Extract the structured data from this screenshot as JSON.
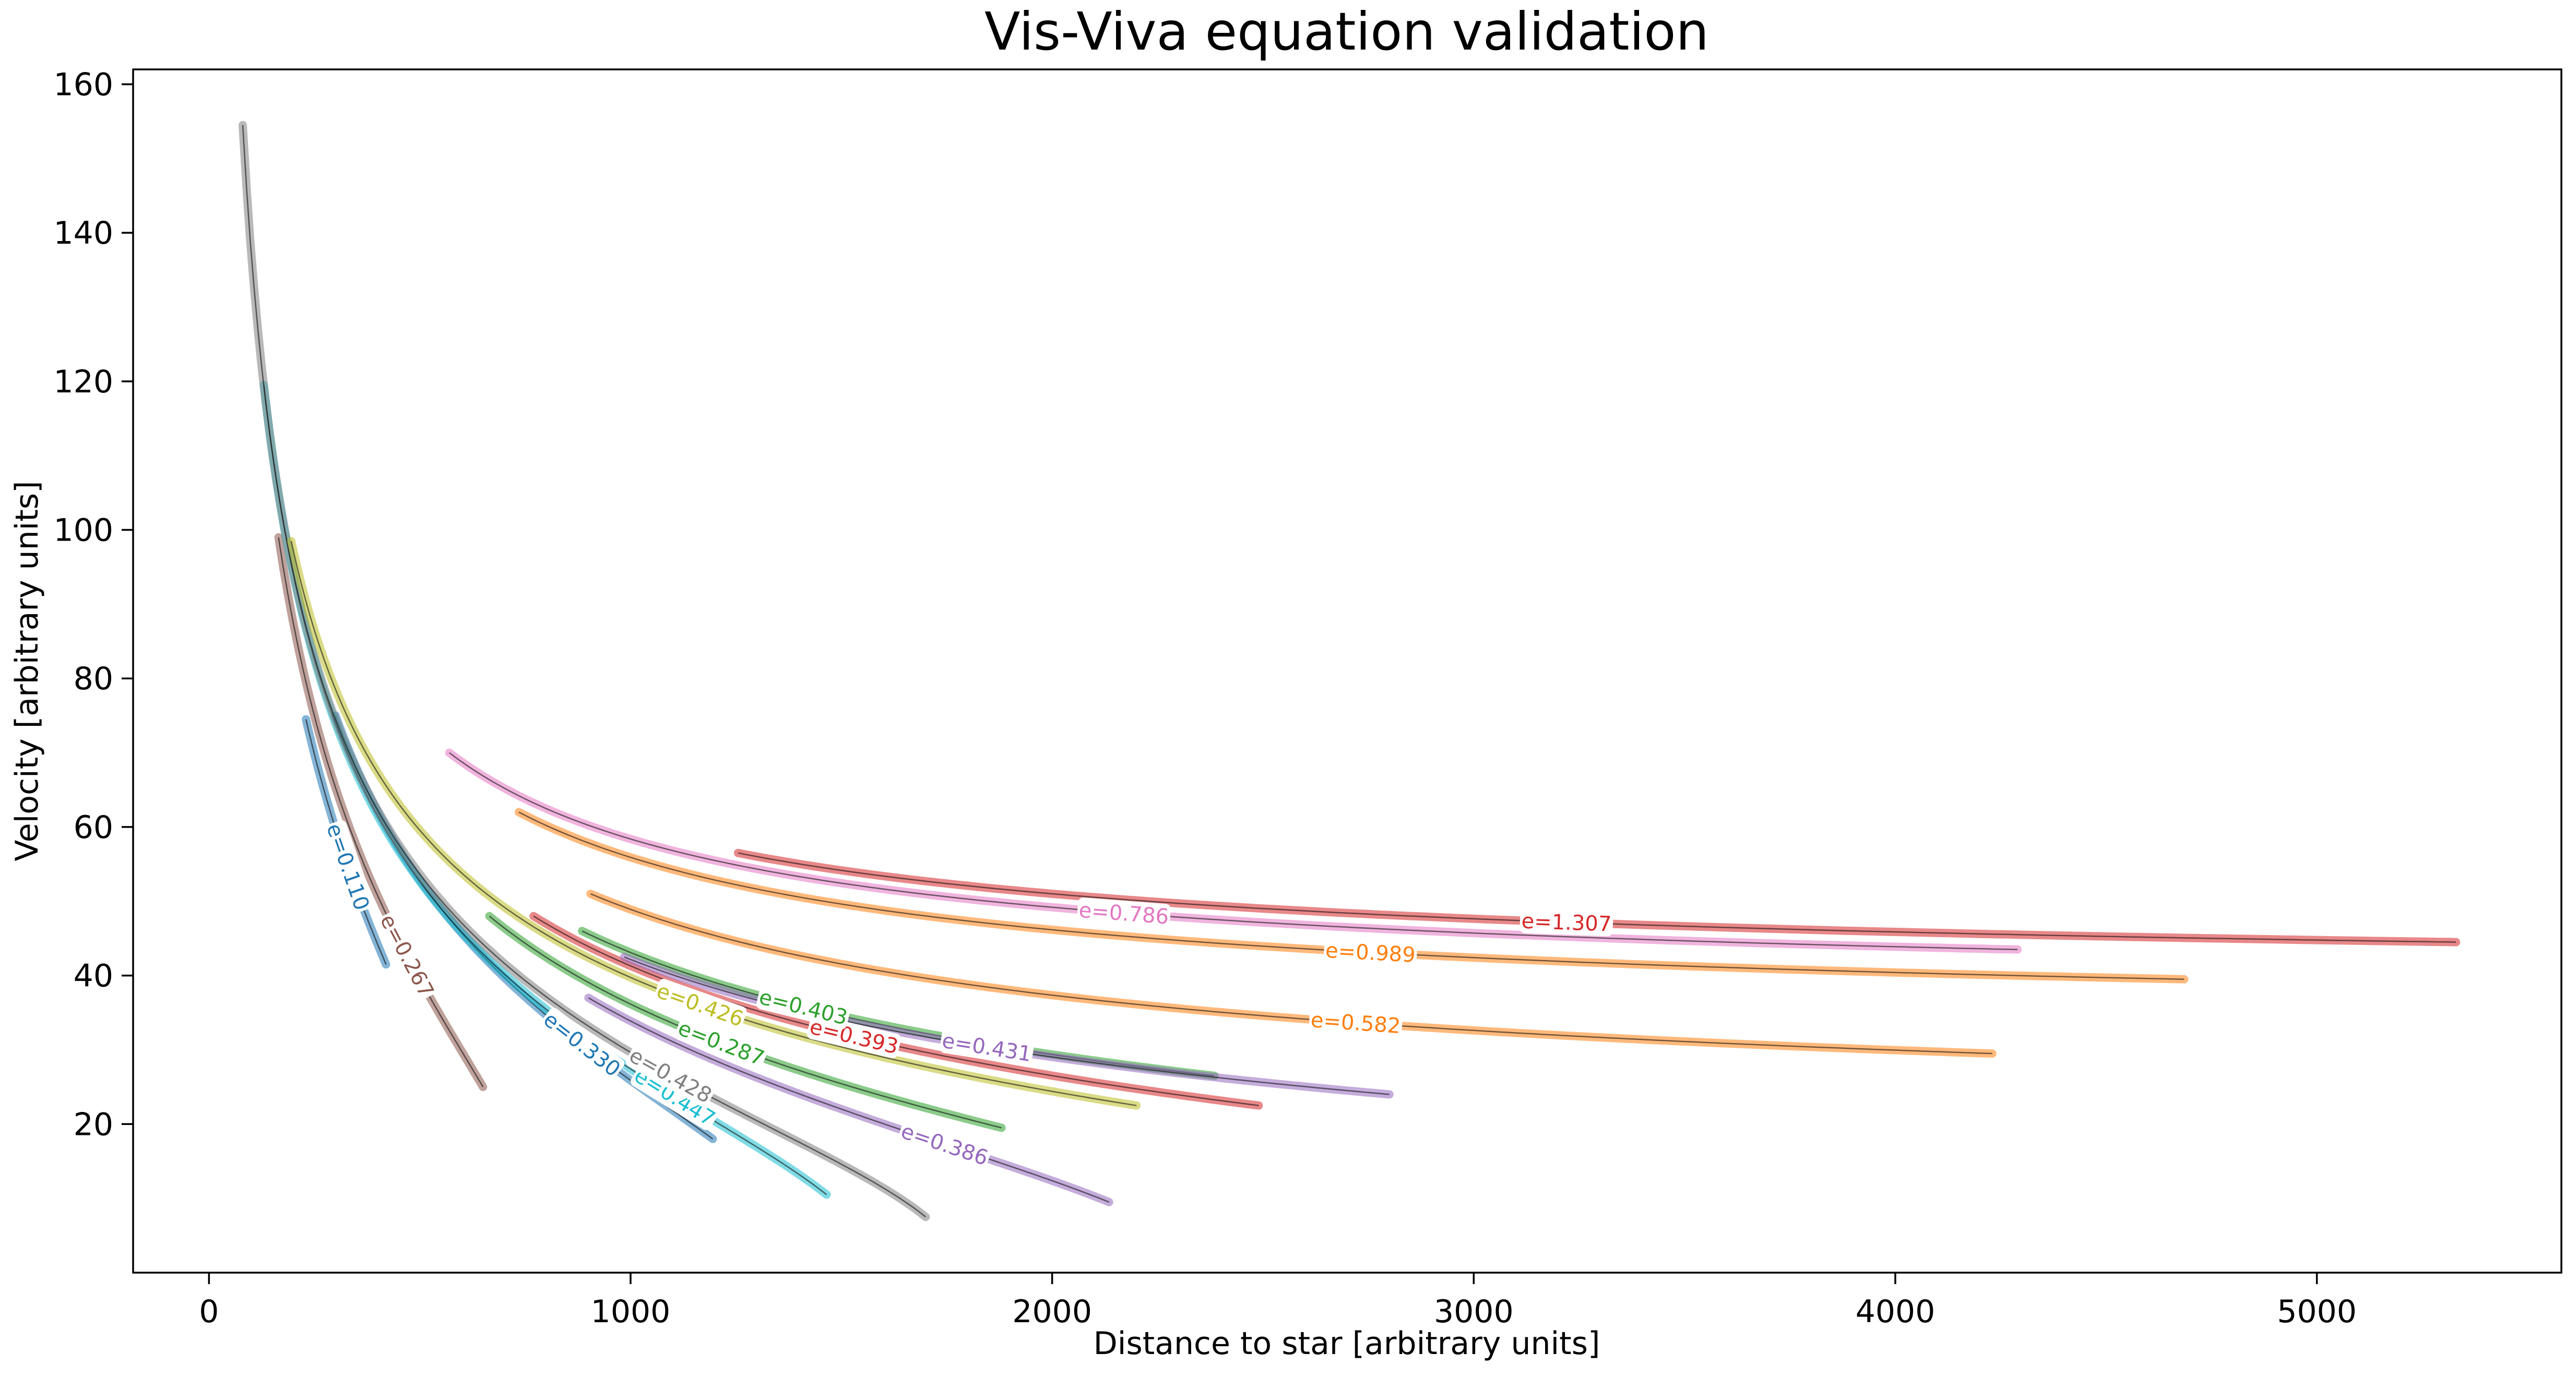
{
  "chart_data": {
    "type": "line",
    "title": "Vis-Viva equation validation",
    "xlabel": "Distance to star [arbitrary units]",
    "ylabel": "Velocity [arbitrary units]",
    "xlim": [
      -180,
      5580
    ],
    "ylim": [
      0,
      162
    ],
    "xticks": [
      0,
      1000,
      2000,
      3000,
      4000,
      5000
    ],
    "yticks": [
      20,
      40,
      60,
      80,
      100,
      120,
      140,
      160
    ],
    "grid": false,
    "legend": "none",
    "series": [
      {
        "label": "e=0.110",
        "color": "#1f77b4",
        "r_min": 230,
        "v_max": 74.5,
        "r_max": 420,
        "v_min": 41.5,
        "label_r": 330
      },
      {
        "label": "e=0.267",
        "color": "#8c564b",
        "r_min": 165,
        "v_max": 99,
        "r_max": 650,
        "v_min": 25,
        "label_r": 470
      },
      {
        "label": "e=0.330",
        "color": "#1f77b4",
        "r_min": 300,
        "v_max": 75,
        "r_max": 1195,
        "v_min": 18,
        "label_r": 885
      },
      {
        "label": "e=0.447",
        "color": "#17becf",
        "r_min": 130,
        "v_max": 119.5,
        "r_max": 1465,
        "v_min": 10.5,
        "label_r": 1105
      },
      {
        "label": "e=0.428",
        "color": "#7f7f7f",
        "r_min": 80,
        "v_max": 154.5,
        "r_max": 1700,
        "v_min": 7.5,
        "label_r": 1095
      },
      {
        "label": "e=0.426",
        "color": "#bcbd22",
        "r_min": 195,
        "v_max": 98.5,
        "r_max": 2200,
        "v_min": 22.5,
        "label_r": 1165
      },
      {
        "label": "e=0.287",
        "color": "#2ca02c",
        "r_min": 665,
        "v_max": 48,
        "r_max": 1880,
        "v_min": 19.5,
        "label_r": 1215
      },
      {
        "label": "e=0.386",
        "color": "#9467bd",
        "r_min": 900,
        "v_max": 37,
        "r_max": 2135,
        "v_min": 9.5,
        "label_r": 1745
      },
      {
        "label": "e=0.393",
        "color": "#d62728",
        "r_min": 770,
        "v_max": 48,
        "r_max": 2490,
        "v_min": 22.5,
        "label_r": 1530
      },
      {
        "label": "e=0.403",
        "color": "#2ca02c",
        "r_min": 885,
        "v_max": 46,
        "r_max": 2385,
        "v_min": 26.5,
        "label_r": 1410
      },
      {
        "label": "e=0.431",
        "color": "#9467bd",
        "r_min": 985,
        "v_max": 42.5,
        "r_max": 2800,
        "v_min": 24,
        "label_r": 1845
      },
      {
        "label": "e=0.582",
        "color": "#ff7f0e",
        "r_min": 905,
        "v_max": 51,
        "r_max": 4230,
        "v_min": 29.5,
        "label_r": 2720
      },
      {
        "label": "e=0.989",
        "color": "#ff7f0e",
        "r_min": 735,
        "v_max": 62,
        "r_max": 4685,
        "v_min": 39.5,
        "label_r": 2755
      },
      {
        "label": "e=0.786",
        "color": "#e377c2",
        "r_min": 570,
        "v_max": 70,
        "r_max": 4290,
        "v_min": 43.5,
        "label_r": 2170
      },
      {
        "label": "e=1.307",
        "color": "#d62728",
        "r_min": 1255,
        "v_max": 56.5,
        "r_max": 5330,
        "v_min": 44.5,
        "label_r": 3220
      }
    ]
  }
}
